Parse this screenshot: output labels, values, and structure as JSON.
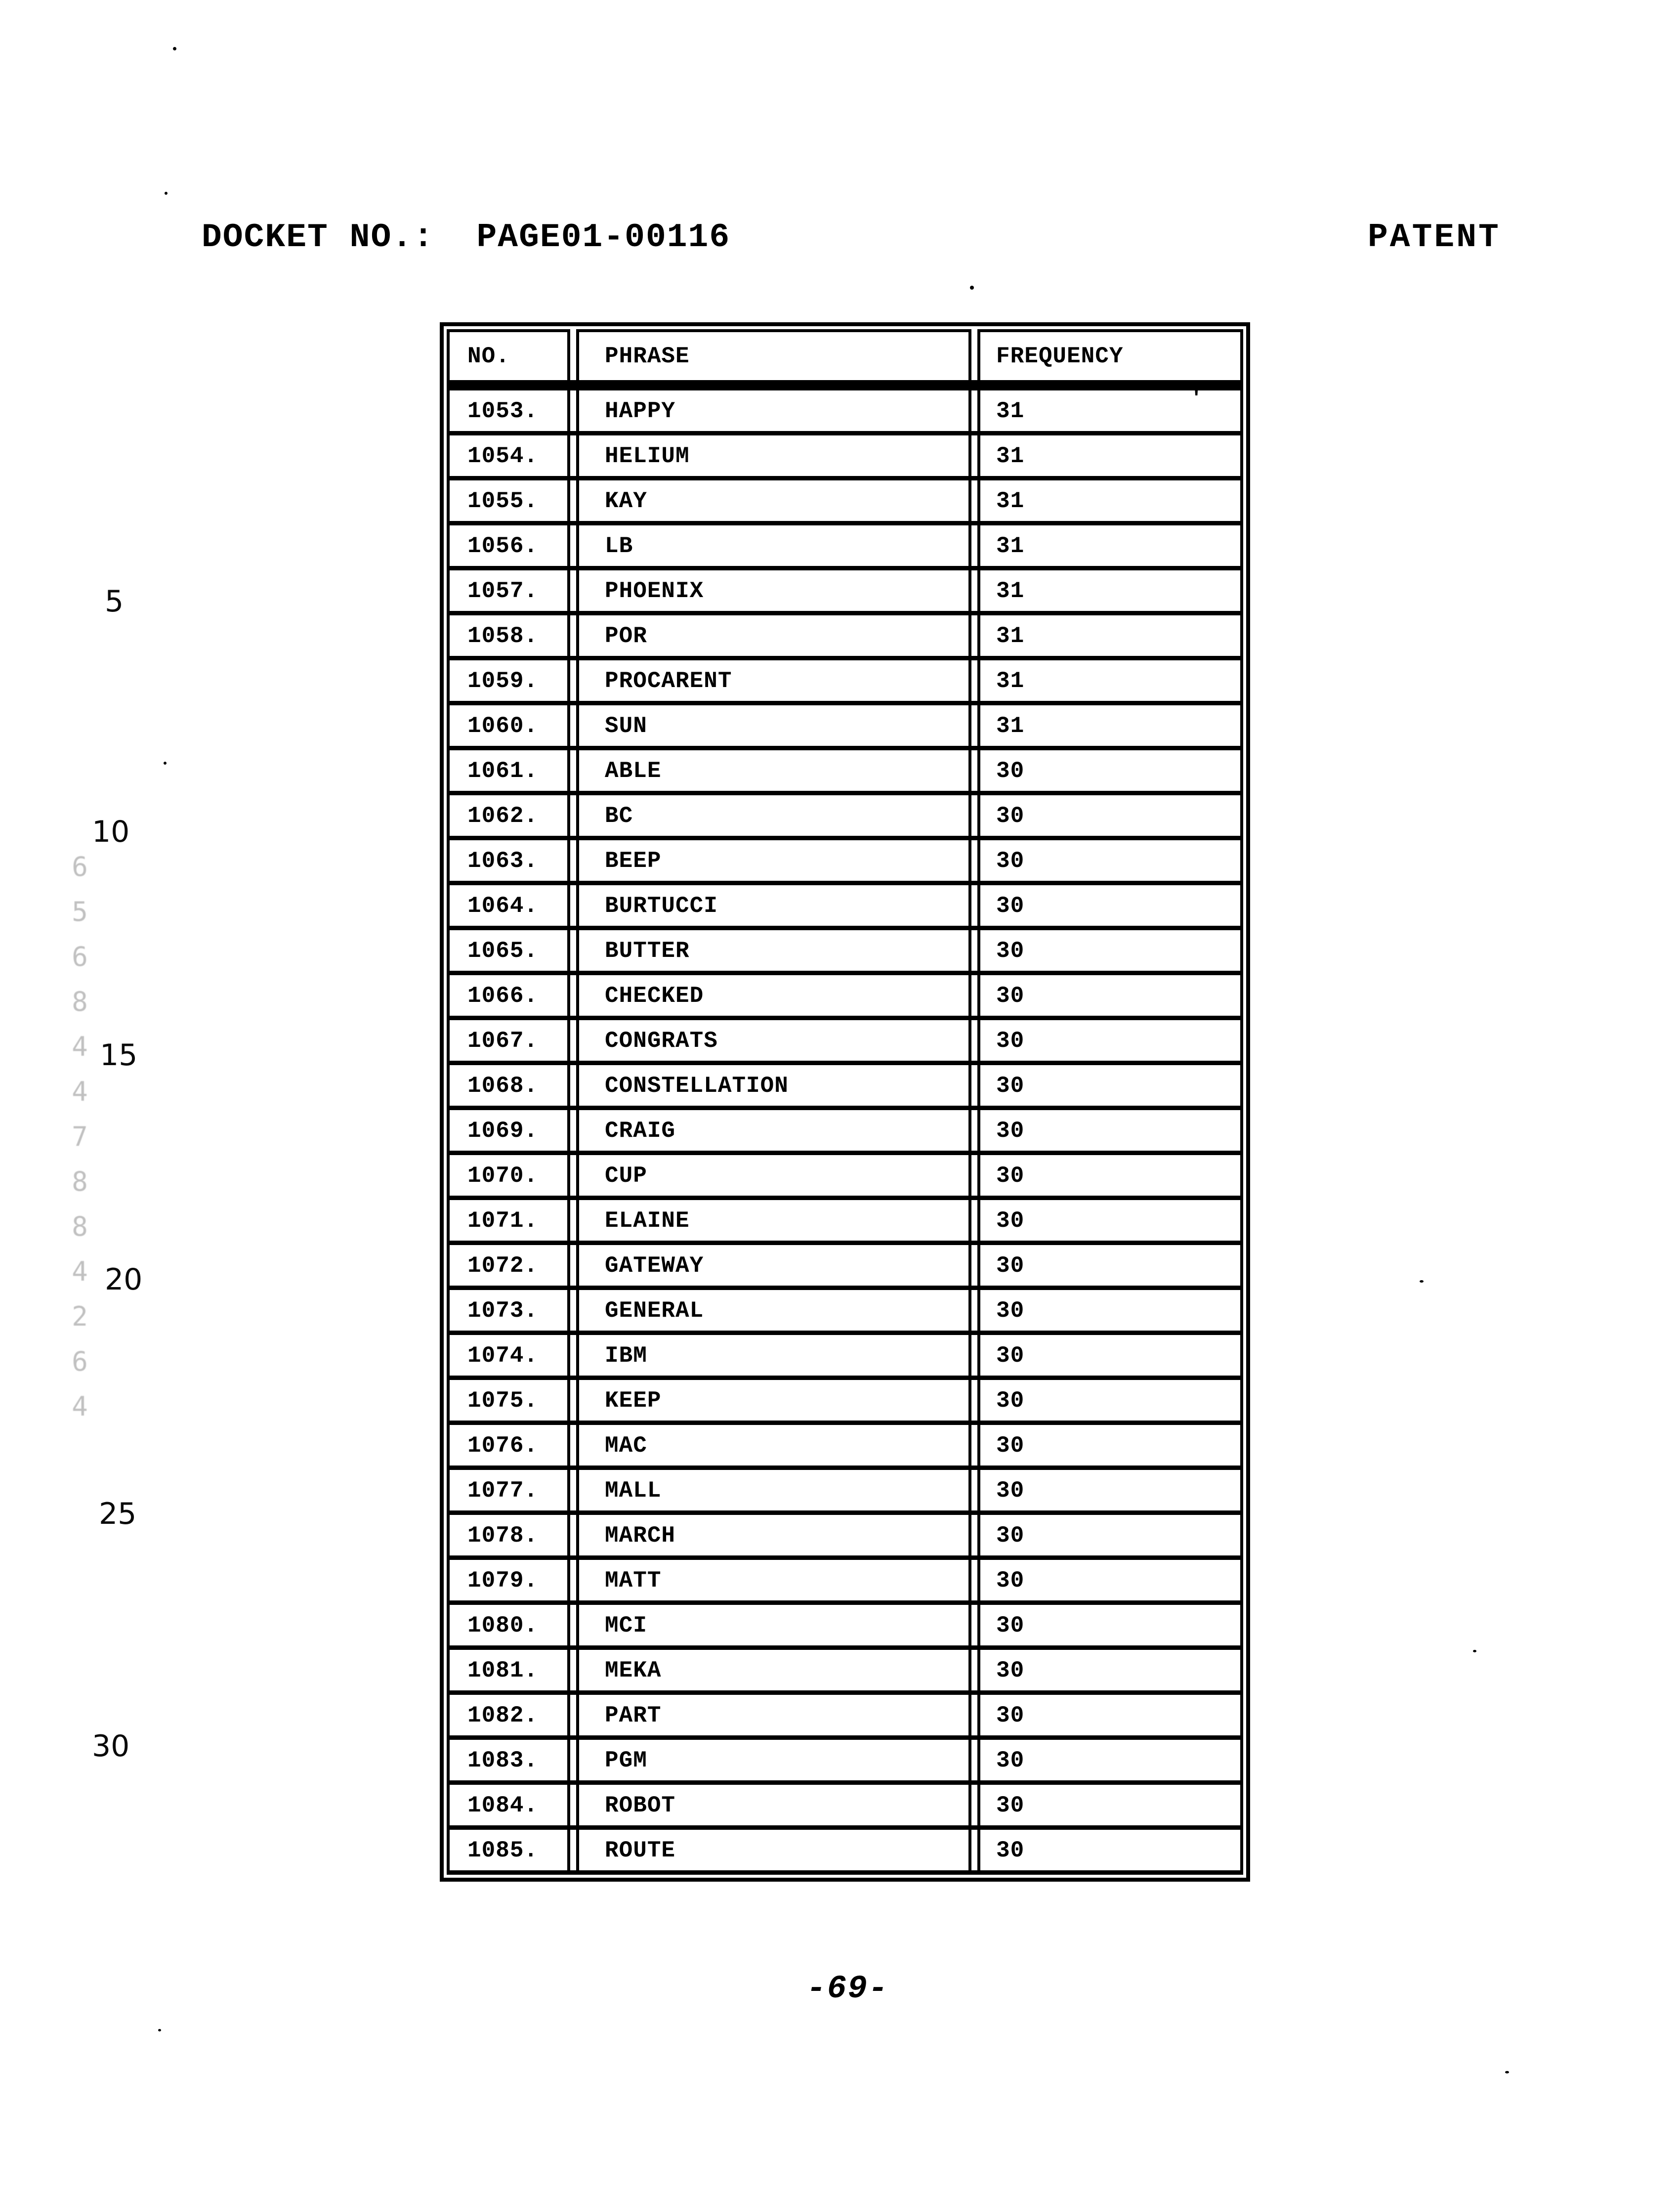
{
  "page": {
    "docket_label": "DOCKET NO.:  PAGE01-00116",
    "patent_label": "PATENT",
    "page_number": "-69-",
    "stray_mark": "'"
  },
  "margin": {
    "line_numbers": [
      "5",
      "10",
      "15",
      "20",
      "25",
      "30"
    ],
    "stamp_glyphs": "6568447884264"
  },
  "table": {
    "columns": {
      "no": "NO.",
      "phrase": "PHRASE",
      "frequency": "FREQUENCY"
    },
    "rows": [
      {
        "no": "1053.",
        "phrase": "HAPPY",
        "frequency": "31"
      },
      {
        "no": "1054.",
        "phrase": "HELIUM",
        "frequency": "31"
      },
      {
        "no": "1055.",
        "phrase": "KAY",
        "frequency": "31"
      },
      {
        "no": "1056.",
        "phrase": "LB",
        "frequency": "31"
      },
      {
        "no": "1057.",
        "phrase": "PHOENIX",
        "frequency": "31"
      },
      {
        "no": "1058.",
        "phrase": "POR",
        "frequency": "31"
      },
      {
        "no": "1059.",
        "phrase": "PROCARENT",
        "frequency": "31"
      },
      {
        "no": "1060.",
        "phrase": "SUN",
        "frequency": "31"
      },
      {
        "no": "1061.",
        "phrase": "ABLE",
        "frequency": "30"
      },
      {
        "no": "1062.",
        "phrase": "BC",
        "frequency": "30"
      },
      {
        "no": "1063.",
        "phrase": "BEEP",
        "frequency": "30"
      },
      {
        "no": "1064.",
        "phrase": "BURTUCCI",
        "frequency": "30"
      },
      {
        "no": "1065.",
        "phrase": "BUTTER",
        "frequency": "30"
      },
      {
        "no": "1066.",
        "phrase": "CHECKED",
        "frequency": "30"
      },
      {
        "no": "1067.",
        "phrase": "CONGRATS",
        "frequency": "30"
      },
      {
        "no": "1068.",
        "phrase": "CONSTELLATION",
        "frequency": "30"
      },
      {
        "no": "1069.",
        "phrase": "CRAIG",
        "frequency": "30"
      },
      {
        "no": "1070.",
        "phrase": "CUP",
        "frequency": "30"
      },
      {
        "no": "1071.",
        "phrase": "ELAINE",
        "frequency": "30"
      },
      {
        "no": "1072.",
        "phrase": "GATEWAY",
        "frequency": "30"
      },
      {
        "no": "1073.",
        "phrase": "GENERAL",
        "frequency": "30"
      },
      {
        "no": "1074.",
        "phrase": "IBM",
        "frequency": "30"
      },
      {
        "no": "1075.",
        "phrase": "KEEP",
        "frequency": "30"
      },
      {
        "no": "1076.",
        "phrase": "MAC",
        "frequency": "30"
      },
      {
        "no": "1077.",
        "phrase": "MALL",
        "frequency": "30"
      },
      {
        "no": "1078.",
        "phrase": "MARCH",
        "frequency": "30"
      },
      {
        "no": "1079.",
        "phrase": "MATT",
        "frequency": "30"
      },
      {
        "no": "1080.",
        "phrase": "MCI",
        "frequency": "30"
      },
      {
        "no": "1081.",
        "phrase": "MEKA",
        "frequency": "30"
      },
      {
        "no": "1082.",
        "phrase": "PART",
        "frequency": "30"
      },
      {
        "no": "1083.",
        "phrase": "PGM",
        "frequency": "30"
      },
      {
        "no": "1084.",
        "phrase": "ROBOT",
        "frequency": "30"
      },
      {
        "no": "1085.",
        "phrase": "ROUTE",
        "frequency": "30"
      }
    ]
  }
}
